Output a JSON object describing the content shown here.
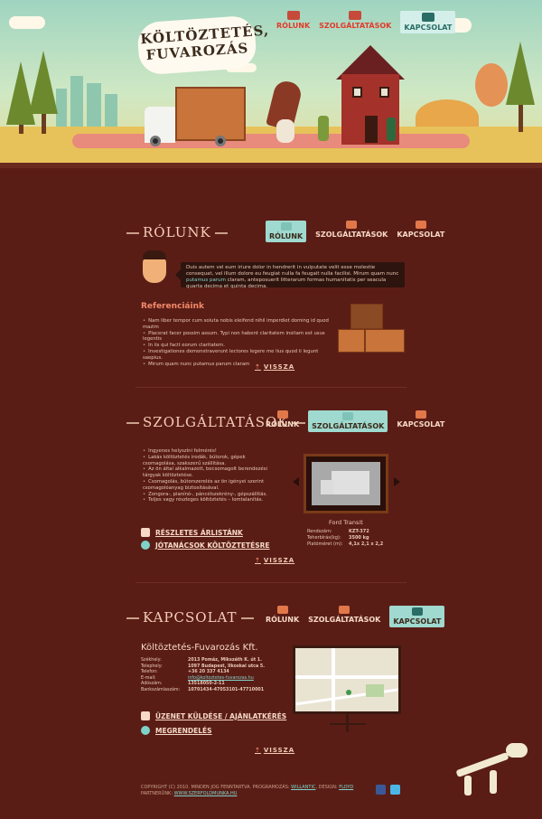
{
  "logo": {
    "line1": "KÖLTÖZTETÉS,",
    "line2": "FUVAROZÁS"
  },
  "nav": [
    {
      "label": "RÓLUNK",
      "active": false
    },
    {
      "label": "SZOLGÁLTATÁSOK",
      "active": false
    },
    {
      "label": "KAPCSOLAT",
      "active": true
    }
  ],
  "about": {
    "title": "RÓLUNK",
    "nav": [
      {
        "label": "RÓLUNK",
        "active": true
      },
      {
        "label": "SZOLGÁLTATÁSOK",
        "active": false
      },
      {
        "label": "KAPCSOLAT",
        "active": false
      }
    ],
    "bubble_pre": "Duis autem vel eum iriure dolor in hendrerit in vulputate velit esse molestie consequat, vel illum dolore eu feugiat nulla fa feugait nulla facilisi. Mirum quam nunc ",
    "bubble_link": "putamus parum",
    "bubble_post": " claram, anteposuerit litterarum formas humanitatis per seacula quarta decima et quinta decima.",
    "ref_title": "Referenciáink",
    "ref_items": [
      "Nam liber tempor cum soluta nobis eleifend nihil imperdiet doming id quod mazim",
      "Placerat facer possim assum. Typi non habent claritatem insitam est usus legentis",
      "In iis qui facit eorum claritatem.",
      "Investigationes demonstraverunt lectores legere me lius quod ii legunt saepius.",
      "Mirum quam nunc putamus parum claram"
    ],
    "back": "VISSZA"
  },
  "services": {
    "title": "SZOLGÁLTATÁSOK",
    "nav": [
      {
        "label": "RÓLUNK",
        "active": false
      },
      {
        "label": "SZOLGÁLTATÁSOK",
        "active": true
      },
      {
        "label": "KAPCSOLAT",
        "active": false
      }
    ],
    "items": [
      "Ingyenes helyszíni felmérés!",
      "Lakás költöztetés irodák, bútorok, gépek csomagolása, szakszerű szállítása.",
      "Az ön által alkalmazott, becsomagolt berendezési tárgyak költöztetése.",
      "Csomagolás, bútorszerelés az ön igényei szerint csomagolóanyag biztosításával.",
      "Zongora-, pianínó-, páncélszekrény-, gépszállítás.",
      "Teljes vagy részleges költöztetés – lomtalanítás."
    ],
    "vehicle": {
      "name": "Ford Transit",
      "specs": [
        {
          "label": "Rendszám:",
          "value": "KZT-372"
        },
        {
          "label": "Teherbírás(kg):",
          "value": "3500 kg"
        },
        {
          "label": "Platóméret (m):",
          "value": "4,1x 2,1 x 2,2"
        }
      ]
    },
    "links": [
      "RÉSZLETES ÁRLISTÁNK",
      "JÓTANÁCSOK KÖLTÖZTETÉSRE"
    ],
    "back": "VISSZA"
  },
  "contact": {
    "title": "KAPCSOLAT",
    "nav": [
      {
        "label": "RÓLUNK",
        "active": false
      },
      {
        "label": "SZOLGÁLTATÁSOK",
        "active": false
      },
      {
        "label": "KAPCSOLAT",
        "active": true
      }
    ],
    "company": "Költöztetés-Fuvarozás Kft.",
    "rows": [
      {
        "label": "Székhely:",
        "value": "2013 Pomáz, Mikszáth K. út 1."
      },
      {
        "label": "Telephely:",
        "value": "1097 Budapest, Ilkoskai utca 5."
      },
      {
        "label": "Telefon:",
        "value": "+36 20 337 4134"
      },
      {
        "label": "E-mail:",
        "value": "info@koltoztetes-fuvarozas.hu"
      },
      {
        "label": "Adószám:",
        "value": "13518050-2-11"
      },
      {
        "label": "Bankszámlaszám:",
        "value": "10701434-47053101-47710001"
      }
    ],
    "links": [
      "ÜZENET KÜLDÉSE / AJÁNLATKÉRÉS",
      "MEGRENDELÉS"
    ],
    "back": "VISSZA"
  },
  "footer": {
    "line1_pre": "COPYRIGHT (C) 2010. MINDEN JOG FENNTARTVA. PROGRAMOZÁS: ",
    "programmer": "WILLANTIC",
    "design_label": ", DESIGN: ",
    "designer": "FLOYD",
    "partner_label": "PARTNERÜNK: ",
    "partner": "WWW.SZERFOLDMUNKA.HU"
  },
  "colors": {
    "background": "#5a1d16",
    "accent": "#f28a6a",
    "teal": "#7fd2c9"
  }
}
